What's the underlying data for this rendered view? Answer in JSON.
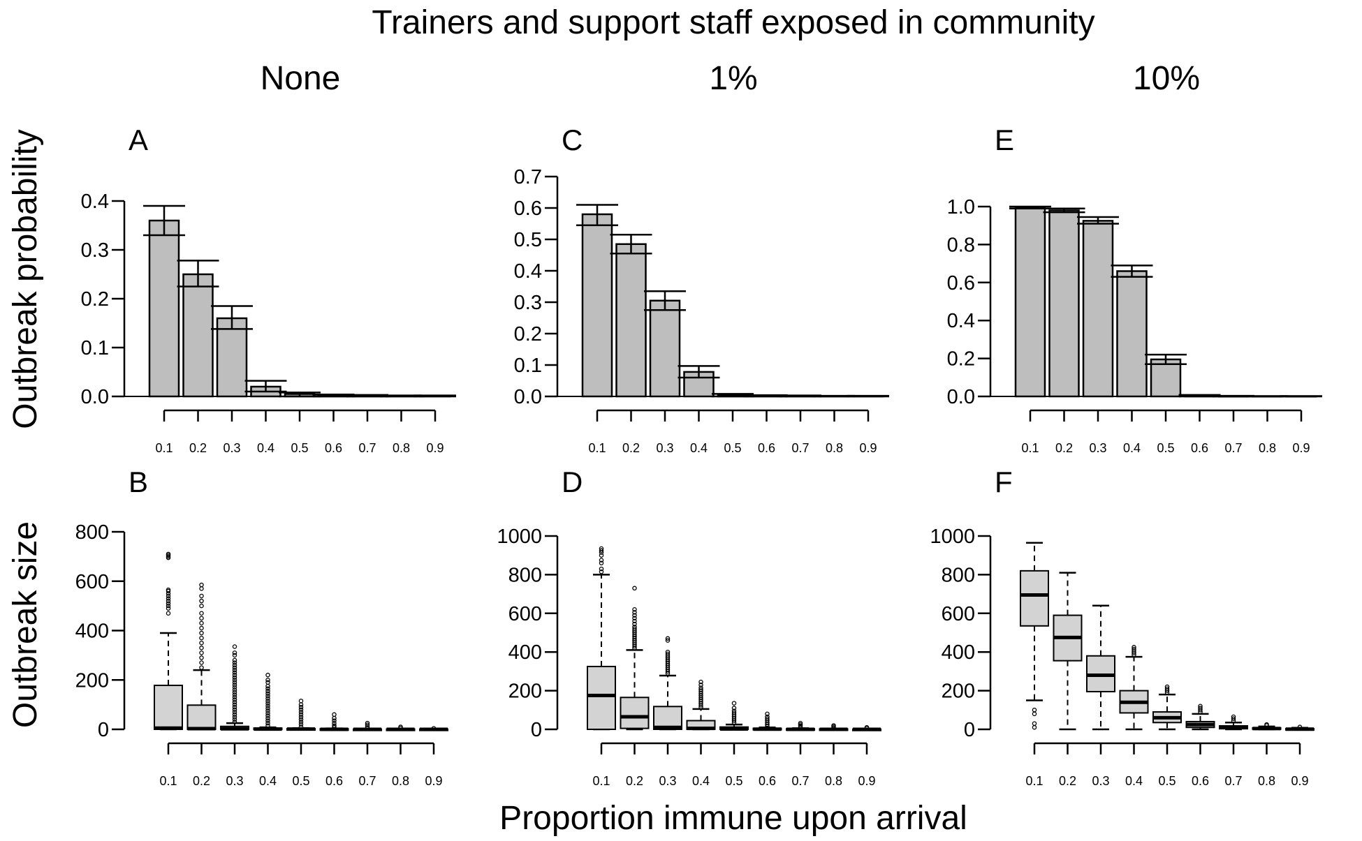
{
  "title": "Trainers and support staff exposed in community",
  "column_titles": [
    "None",
    "1%",
    "10%"
  ],
  "row_labels": [
    "Outbreak probability",
    "Outbreak size"
  ],
  "xlabel": "Proportion immune upon arrival",
  "colors": {
    "bar_fill": "#bebebe",
    "box_fill": "#d3d3d3",
    "ink": "#000000"
  },
  "chart_data": [
    {
      "panel": "A",
      "type": "bar",
      "categories": [
        "0.1",
        "0.2",
        "0.3",
        "0.4",
        "0.5",
        "0.6",
        "0.7",
        "0.8",
        "0.9"
      ],
      "values": [
        0.36,
        0.25,
        0.16,
        0.02,
        0.005,
        0.002,
        0.001,
        0.001,
        0.001
      ],
      "ci_low": [
        0.33,
        0.225,
        0.138,
        0.01,
        0.0,
        0.0,
        0.0,
        0.0,
        0.0
      ],
      "ci_high": [
        0.39,
        0.278,
        0.185,
        0.032,
        0.008,
        0.004,
        0.003,
        0.002,
        0.002
      ],
      "ylim": [
        0,
        0.4
      ],
      "yticks": [
        "0.0",
        "0.1",
        "0.2",
        "0.3",
        "0.4"
      ],
      "ylabel": "Outbreak probability"
    },
    {
      "panel": "B",
      "type": "box",
      "categories": [
        "0.1",
        "0.2",
        "0.3",
        "0.4",
        "0.5",
        "0.6",
        "0.7",
        "0.8",
        "0.9"
      ],
      "boxes": [
        {
          "low": 0,
          "q1": 0,
          "median": 5,
          "q3": 178,
          "high": 390,
          "outliers": [
            470,
            490,
            500,
            510,
            520,
            530,
            540,
            550,
            560,
            565,
            695,
            700,
            705,
            710
          ]
        },
        {
          "low": 0,
          "q1": 0,
          "median": 3,
          "q3": 98,
          "high": 240,
          "outliers": [
            250,
            270,
            290,
            310,
            330,
            350,
            370,
            390,
            410,
            430,
            450,
            470,
            500,
            520,
            540,
            570,
            585
          ]
        },
        {
          "low": 0,
          "q1": 0,
          "median": 2,
          "q3": 12,
          "high": 25,
          "outliers": [
            30,
            40,
            50,
            60,
            70,
            80,
            90,
            100,
            110,
            120,
            130,
            140,
            150,
            160,
            170,
            180,
            190,
            200,
            210,
            220,
            230,
            240,
            250,
            260,
            270,
            280,
            300,
            310,
            335
          ]
        },
        {
          "low": 0,
          "q1": 0,
          "median": 1,
          "q3": 5,
          "high": 8,
          "outliers": [
            15,
            25,
            35,
            45,
            55,
            65,
            75,
            85,
            95,
            105,
            115,
            125,
            135,
            145,
            155,
            165,
            175,
            190,
            200,
            220
          ]
        },
        {
          "low": 0,
          "q1": 0,
          "median": 1,
          "q3": 3,
          "high": 5,
          "outliers": [
            10,
            20,
            30,
            40,
            50,
            60,
            70,
            80,
            90,
            100,
            115
          ]
        },
        {
          "low": 0,
          "q1": 0,
          "median": 0,
          "q3": 2,
          "high": 4,
          "outliers": [
            8,
            15,
            25,
            35,
            45,
            60
          ]
        },
        {
          "low": 0,
          "q1": 0,
          "median": 0,
          "q3": 1,
          "high": 3,
          "outliers": [
            6,
            12,
            18,
            25
          ]
        },
        {
          "low": 0,
          "q1": 0,
          "median": 0,
          "q3": 1,
          "high": 2,
          "outliers": [
            5,
            10
          ]
        },
        {
          "low": 0,
          "q1": 0,
          "median": 0,
          "q3": 1,
          "high": 2,
          "outliers": [
            4
          ]
        }
      ],
      "ylim": [
        0,
        800
      ],
      "yticks": [
        "0",
        "200",
        "400",
        "600",
        "800"
      ],
      "ylabel": "Outbreak size"
    },
    {
      "panel": "C",
      "type": "bar",
      "categories": [
        "0.1",
        "0.2",
        "0.3",
        "0.4",
        "0.5",
        "0.6",
        "0.7",
        "0.8",
        "0.9"
      ],
      "values": [
        0.58,
        0.485,
        0.305,
        0.078,
        0.005,
        0.002,
        0.001,
        0.001,
        0.001
      ],
      "ci_low": [
        0.545,
        0.455,
        0.275,
        0.06,
        0.0,
        0.0,
        0.0,
        0.0,
        0.0
      ],
      "ci_high": [
        0.61,
        0.515,
        0.335,
        0.097,
        0.008,
        0.004,
        0.003,
        0.002,
        0.002
      ],
      "ylim": [
        0,
        0.7
      ],
      "yticks": [
        "0.0",
        "0.1",
        "0.2",
        "0.3",
        "0.4",
        "0.5",
        "0.6",
        "0.7"
      ],
      "ylabel": ""
    },
    {
      "panel": "D",
      "type": "box",
      "categories": [
        "0.1",
        "0.2",
        "0.3",
        "0.4",
        "0.5",
        "0.6",
        "0.7",
        "0.8",
        "0.9"
      ],
      "boxes": [
        {
          "low": 0,
          "q1": 0,
          "median": 175,
          "q3": 325,
          "high": 800,
          "outliers": [
            815,
            830,
            860,
            875,
            900,
            915,
            925,
            935
          ]
        },
        {
          "low": 0,
          "q1": 5,
          "median": 65,
          "q3": 165,
          "high": 410,
          "outliers": [
            420,
            430,
            440,
            450,
            460,
            470,
            480,
            490,
            500,
            510,
            520,
            530,
            545,
            560,
            575,
            590,
            605,
            620,
            730
          ]
        },
        {
          "low": 0,
          "q1": 0,
          "median": 10,
          "q3": 118,
          "high": 278,
          "outliers": [
            290,
            300,
            310,
            320,
            330,
            340,
            350,
            360,
            370,
            380,
            390,
            400,
            460,
            470
          ]
        },
        {
          "low": 0,
          "q1": 0,
          "median": 5,
          "q3": 45,
          "high": 105,
          "outliers": [
            115,
            125,
            135,
            145,
            155,
            165,
            175,
            185,
            195,
            205,
            215,
            230,
            245
          ]
        },
        {
          "low": 0,
          "q1": 0,
          "median": 2,
          "q3": 12,
          "high": 25,
          "outliers": [
            35,
            45,
            55,
            65,
            75,
            85,
            95,
            110,
            135
          ]
        },
        {
          "low": 0,
          "q1": 0,
          "median": 1,
          "q3": 5,
          "high": 10,
          "outliers": [
            15,
            25,
            35,
            45,
            55,
            65,
            80
          ]
        },
        {
          "low": 0,
          "q1": 0,
          "median": 0,
          "q3": 3,
          "high": 6,
          "outliers": [
            10,
            18,
            25,
            32
          ]
        },
        {
          "low": 0,
          "q1": 0,
          "median": 0,
          "q3": 2,
          "high": 4,
          "outliers": [
            8,
            14,
            20
          ]
        },
        {
          "low": 0,
          "q1": 0,
          "median": 0,
          "q3": 1,
          "high": 3,
          "outliers": [
            6,
            10
          ]
        }
      ],
      "ylim": [
        0,
        1000
      ],
      "yticks": [
        "0",
        "200",
        "400",
        "600",
        "800",
        "1000"
      ],
      "ylabel": ""
    },
    {
      "panel": "E",
      "type": "bar",
      "categories": [
        "0.1",
        "0.2",
        "0.3",
        "0.4",
        "0.5",
        "0.6",
        "0.7",
        "0.8",
        "0.9"
      ],
      "values": [
        0.995,
        0.98,
        0.925,
        0.66,
        0.195,
        0.004,
        0.001,
        0.001,
        0.001
      ],
      "ci_low": [
        0.99,
        0.97,
        0.91,
        0.63,
        0.17,
        0.0,
        0.0,
        0.0,
        0.0
      ],
      "ci_high": [
        1.0,
        0.99,
        0.945,
        0.69,
        0.22,
        0.008,
        0.003,
        0.002,
        0.002
      ],
      "ylim": [
        0,
        1.0
      ],
      "yticks": [
        "0.0",
        "0.2",
        "0.4",
        "0.6",
        "0.8",
        "1.0"
      ],
      "ylabel": ""
    },
    {
      "panel": "F",
      "type": "box",
      "categories": [
        "0.1",
        "0.2",
        "0.3",
        "0.4",
        "0.5",
        "0.6",
        "0.7",
        "0.8",
        "0.9"
      ],
      "boxes": [
        {
          "low": 150,
          "q1": 535,
          "median": 695,
          "q3": 820,
          "high": 965,
          "outliers": [
            100,
            80,
            30,
            10
          ]
        },
        {
          "low": 0,
          "q1": 355,
          "median": 475,
          "q3": 590,
          "high": 810,
          "outliers": []
        },
        {
          "low": 0,
          "q1": 195,
          "median": 280,
          "q3": 380,
          "high": 640,
          "outliers": []
        },
        {
          "low": 0,
          "q1": 85,
          "median": 140,
          "q3": 200,
          "high": 375,
          "outliers": [
            385,
            395,
            405,
            415,
            425
          ]
        },
        {
          "low": 0,
          "q1": 35,
          "median": 60,
          "q3": 90,
          "high": 180,
          "outliers": [
            190,
            200,
            210,
            220
          ]
        },
        {
          "low": 0,
          "q1": 10,
          "median": 25,
          "q3": 40,
          "high": 80,
          "outliers": [
            90,
            100,
            110,
            120
          ]
        },
        {
          "low": 0,
          "q1": 3,
          "median": 10,
          "q3": 18,
          "high": 35,
          "outliers": [
            45,
            55,
            65
          ]
        },
        {
          "low": 0,
          "q1": 1,
          "median": 4,
          "q3": 8,
          "high": 15,
          "outliers": [
            20,
            25
          ]
        },
        {
          "low": 0,
          "q1": 0,
          "median": 1,
          "q3": 4,
          "high": 8,
          "outliers": [
            12
          ]
        }
      ],
      "ylim": [
        0,
        1000
      ],
      "yticks": [
        "0",
        "200",
        "400",
        "600",
        "800",
        "1000"
      ],
      "ylabel": ""
    }
  ]
}
